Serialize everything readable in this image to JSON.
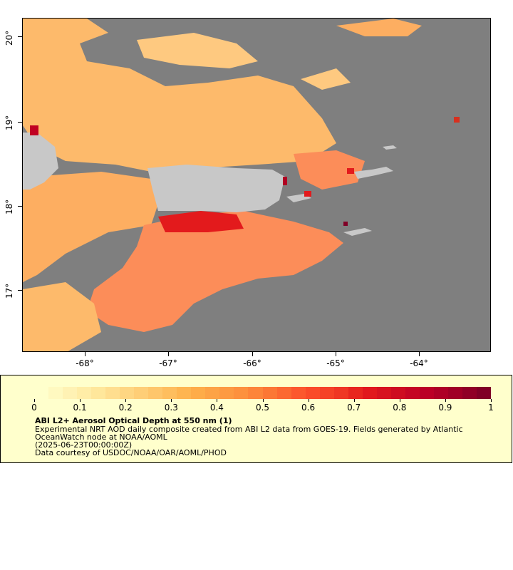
{
  "map": {
    "latitude_labels": [
      "20°",
      "19°",
      "18°",
      "17°"
    ],
    "longitude_labels": [
      "-68°",
      "-67°",
      "-66°",
      "-65°",
      "-64°"
    ],
    "colors": {
      "no_data": "#7f7f7f",
      "land": "#c8c8c8",
      "low": "#fff5c4",
      "mid": "#fdae61",
      "high": "#e31a1c",
      "max": "#800026"
    }
  },
  "legend": {
    "colorbar_ticks": [
      "0",
      "0.1",
      "0.2",
      "0.3",
      "0.4",
      "0.5",
      "0.6",
      "0.7",
      "0.8",
      "0.9",
      "1"
    ],
    "title": "ABI L2+ Aerosol Optical Depth at 550 nm (1)",
    "line1": "Experimental NRT AOD daily composite created from ABI L2 data from GOES-19. Fields generated by Atlantic OceanWatch node at NOAA/AOML",
    "line2": "(2025-06-23T00:00:00Z)",
    "line3": "Data courtesy of USDOC/NOAA/OAR/AOML/PHOD"
  }
}
